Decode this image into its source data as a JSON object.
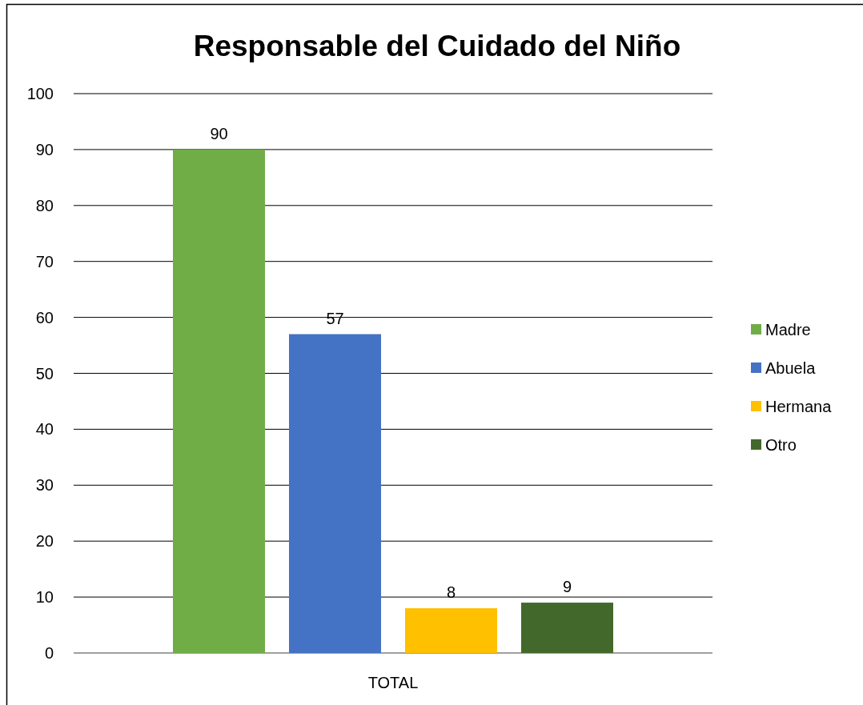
{
  "chart_data": {
    "type": "bar",
    "title": "Responsable del Cuidado del Niño",
    "categories": [
      "TOTAL"
    ],
    "series": [
      {
        "name": "Madre",
        "color": "#70ad47",
        "values": [
          90
        ]
      },
      {
        "name": "Abuela",
        "color": "#4472c4",
        "values": [
          57
        ]
      },
      {
        "name": "Hermana",
        "color": "#ffc000",
        "values": [
          8
        ]
      },
      {
        "name": "Otro",
        "color": "#43682b",
        "values": [
          9
        ]
      }
    ],
    "ylim": [
      0,
      100
    ],
    "yticks": [
      0,
      10,
      20,
      30,
      40,
      50,
      60,
      70,
      80,
      90,
      100
    ],
    "grid": "y",
    "legend": "right",
    "data_labels": true
  }
}
